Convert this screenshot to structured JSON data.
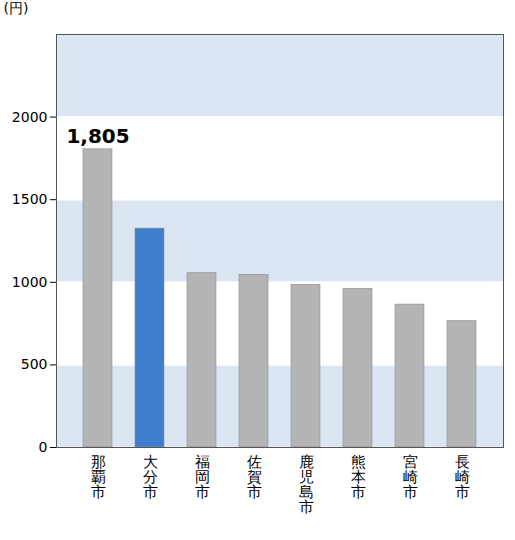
{
  "chart_data": {
    "type": "bar",
    "title": "(円)",
    "categories": [
      "那覇市",
      "大分市",
      "福岡市",
      "佐賀市",
      "鹿児島市",
      "熊本市",
      "宮崎市",
      "長崎市"
    ],
    "values": [
      1805,
      1325,
      1055,
      1045,
      985,
      960,
      865,
      765
    ],
    "value_labels": [
      "1,805",
      null,
      null,
      null,
      null,
      null,
      null,
      null
    ],
    "data_labels": true,
    "colors": [
      "#b4b4b4",
      "#3d7fcc",
      "#b4b4b4",
      "#b4b4b4",
      "#b4b4b4",
      "#b4b4b4",
      "#b4b4b4",
      "#b4b4b4"
    ],
    "ylim": [
      0,
      2500
    ],
    "yticks": [
      0,
      500,
      1000,
      1500,
      2000
    ],
    "grid": true
  }
}
